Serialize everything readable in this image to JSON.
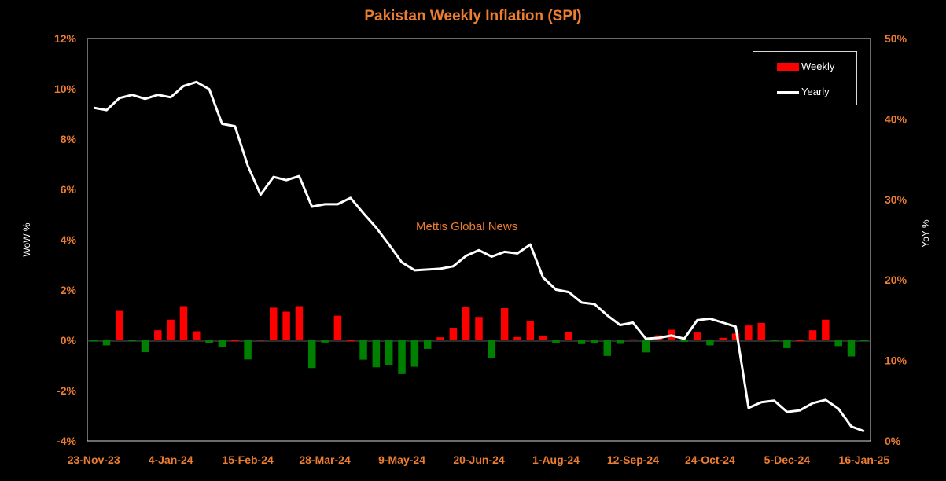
{
  "chart_data": {
    "type": "bar+line",
    "title": "Pakistan Weekly Inflation (SPI)",
    "ylabel_left": "WoW %",
    "ylabel_right": "YoY %",
    "watermark": "Mettis Global News",
    "ylim_left": [
      -4,
      12
    ],
    "ylim_right": [
      0,
      50
    ],
    "yticks_left": [
      "-4%",
      "-2%",
      "0%",
      "2%",
      "4%",
      "6%",
      "8%",
      "10%",
      "12%"
    ],
    "yticks_right": [
      "0%",
      "10%",
      "20%",
      "30%",
      "40%",
      "50%"
    ],
    "xticks": [
      "23-Nov-23",
      "4-Jan-24",
      "15-Feb-24",
      "28-Mar-24",
      "9-May-24",
      "20-Jun-24",
      "1-Aug-24",
      "12-Sep-24",
      "24-Oct-24",
      "5-Dec-24",
      "16-Jan-25"
    ],
    "colors": {
      "positive": "#FF0000",
      "negative": "#008000",
      "line": "#FFFFFF",
      "text": "#ED7D31"
    },
    "series": [
      {
        "name": "Weekly",
        "axis": "left",
        "kind": "bar",
        "values": [
          -0.05,
          -0.2,
          1.17,
          -0.03,
          -0.47,
          0.4,
          0.82,
          1.36,
          0.36,
          -0.12,
          -0.25,
          0.0,
          -0.76,
          0.03,
          1.3,
          1.14,
          1.36,
          -1.1,
          -0.09,
          0.98,
          0.0,
          -0.77,
          -1.07,
          -0.98,
          -1.34,
          -1.05,
          -0.34,
          0.12,
          0.5,
          1.33,
          0.93,
          -0.69,
          1.28,
          0.13,
          0.77,
          0.19,
          -0.12,
          0.33,
          -0.15,
          -0.12,
          -0.62,
          -0.14,
          0.04,
          -0.48,
          0.2,
          0.42,
          -0.06,
          0.31,
          -0.2,
          0.1,
          0.27,
          0.59,
          0.69,
          -0.02,
          -0.31,
          0.0,
          0.4,
          0.82,
          -0.23,
          -0.64,
          -0.02
        ]
      },
      {
        "name": "Yearly",
        "axis": "right",
        "kind": "line",
        "values": [
          41.4,
          41.1,
          42.6,
          43.0,
          42.5,
          43.0,
          42.7,
          44.1,
          44.6,
          43.7,
          39.4,
          39.1,
          34.2,
          30.6,
          32.8,
          32.4,
          32.9,
          29.1,
          29.4,
          29.4,
          30.2,
          28.3,
          26.5,
          24.4,
          22.2,
          21.2,
          21.3,
          21.4,
          21.7,
          23.0,
          23.7,
          22.9,
          23.5,
          23.3,
          24.4,
          20.3,
          18.8,
          18.5,
          17.2,
          17.0,
          15.6,
          14.4,
          14.7,
          12.7,
          12.8,
          13.1,
          12.7,
          15.0,
          15.2,
          14.7,
          14.2,
          4.1,
          4.8,
          5.0,
          3.6,
          3.8,
          4.7,
          5.1,
          4.0,
          1.8,
          1.2
        ]
      }
    ],
    "legend": {
      "position": "top-right",
      "entries": [
        "Weekly",
        "Yearly"
      ]
    },
    "grid": false
  }
}
